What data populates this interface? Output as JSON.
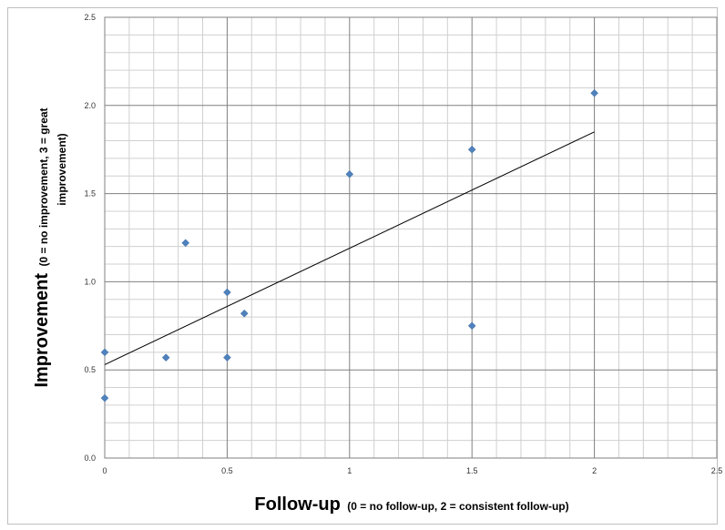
{
  "chart_data": {
    "type": "scatter",
    "title": "",
    "xlabel": {
      "main": "Follow-up",
      "sub": "(0 = no follow-up, 2 = consistent follow-up)"
    },
    "ylabel": {
      "main": "Improvement",
      "sub_line1": "(0 = no improvement, 3 = great",
      "sub_line2": "improvement)"
    },
    "xlim": [
      0,
      2.5
    ],
    "ylim": [
      0,
      2.5
    ],
    "x_ticks": [
      "0",
      "0.5",
      "1",
      "1.5",
      "2",
      "2.5"
    ],
    "y_ticks": [
      "0.0",
      "0.5",
      "1.0",
      "1.5",
      "2.0",
      "2.5"
    ],
    "grid": true,
    "legend": "none",
    "colors": {
      "marker": "#4f81bd",
      "trendline": "#000000",
      "major_grid": "#808080",
      "minor_grid": "#d0d0d0"
    },
    "series": [
      {
        "points": [
          {
            "x": 0,
            "y": 0.34
          },
          {
            "x": 0,
            "y": 0.6
          },
          {
            "x": 0.25,
            "y": 0.57
          },
          {
            "x": 0.33,
            "y": 1.22
          },
          {
            "x": 0.5,
            "y": 0.57
          },
          {
            "x": 0.5,
            "y": 0.94
          },
          {
            "x": 0.57,
            "y": 0.82
          },
          {
            "x": 1,
            "y": 1.61
          },
          {
            "x": 1.5,
            "y": 1.75
          },
          {
            "x": 1.5,
            "y": 0.75
          },
          {
            "x": 2,
            "y": 2.07
          }
        ]
      }
    ],
    "trendline": {
      "type": "linear",
      "x_start": 0,
      "y_start": 0.53,
      "x_end": 2,
      "y_end": 1.85
    }
  }
}
